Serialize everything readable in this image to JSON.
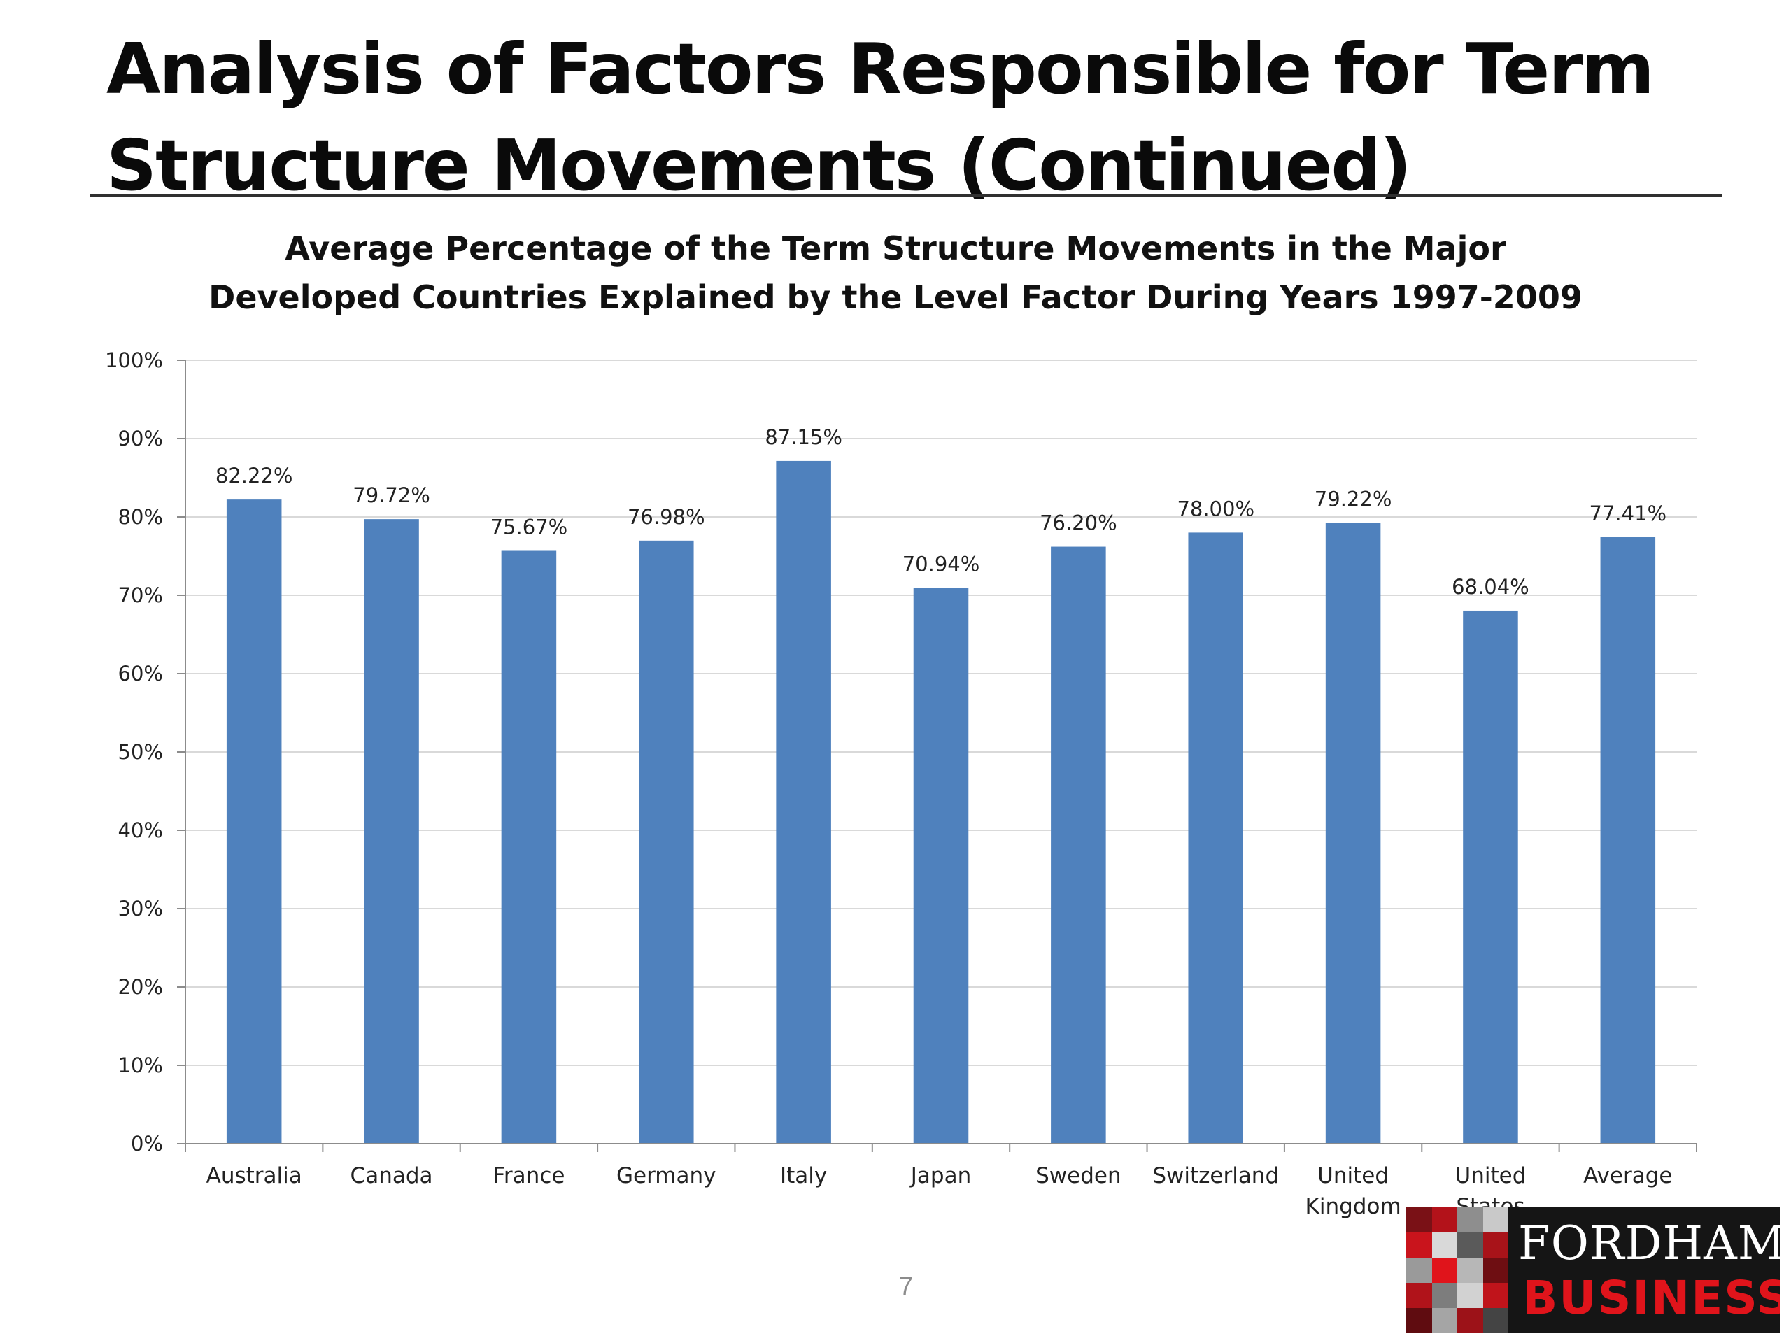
{
  "slide": {
    "title_line1": "Analysis of Factors Responsible for Term",
    "title_line2": "Structure Movements (Continued)",
    "page_number": "7"
  },
  "logo": {
    "line1": "FORDHAM",
    "line2": "BUSINESS"
  },
  "colors": {
    "bar": "#4F81BD",
    "gridline": "#D9D9D9",
    "axis": "#8C8C8C",
    "logo_red": "#E0141B"
  },
  "chart_data": {
    "type": "bar",
    "title": "Average Percentage of the Term Structure Movements in the Major Developed Countries Explained by the Level Factor During Years 1997-2009",
    "title_lines": [
      "Average Percentage of the Term Structure Movements in the Major",
      "Developed Countries Explained by the Level Factor During Years 1997-2009"
    ],
    "categories": [
      "Australia",
      "Canada",
      "France",
      "Germany",
      "Italy",
      "Japan",
      "Sweden",
      "Switzerland",
      "United Kingdom",
      "United States",
      "Average"
    ],
    "category_label_lines": [
      [
        "Australia"
      ],
      [
        "Canada"
      ],
      [
        "France"
      ],
      [
        "Germany"
      ],
      [
        "Italy"
      ],
      [
        "Japan"
      ],
      [
        "Sweden"
      ],
      [
        "Switzerland"
      ],
      [
        "United",
        "Kingdom"
      ],
      [
        "United",
        "States"
      ],
      [
        "Average"
      ]
    ],
    "values": [
      82.22,
      79.72,
      75.67,
      76.98,
      87.15,
      70.94,
      76.2,
      78.0,
      79.22,
      68.04,
      77.41
    ],
    "data_labels": [
      "82.22%",
      "79.72%",
      "75.67%",
      "76.98%",
      "87.15%",
      "70.94%",
      "76.20%",
      "78.00%",
      "79.22%",
      "68.04%",
      "77.41%"
    ],
    "ylim": [
      0,
      100
    ],
    "yticks": [
      0,
      10,
      20,
      30,
      40,
      50,
      60,
      70,
      80,
      90,
      100
    ],
    "ytick_labels": [
      "0%",
      "10%",
      "20%",
      "30%",
      "40%",
      "50%",
      "60%",
      "70%",
      "80%",
      "90%",
      "100%"
    ],
    "xlabel": "",
    "ylabel": "",
    "grid": true,
    "legend": "none"
  }
}
